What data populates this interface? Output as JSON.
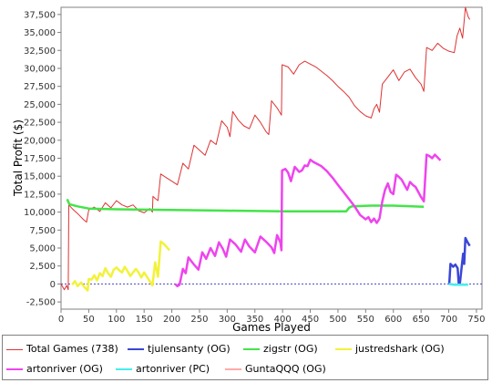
{
  "chart_data": {
    "type": "line",
    "title": "",
    "xlabel": "Games Played",
    "ylabel": "Total Profit ($)",
    "xlim": [
      0,
      760
    ],
    "ylim": [
      -3500,
      38500
    ],
    "x_ticks": [
      "0",
      "50",
      "100",
      "150",
      "200",
      "250",
      "300",
      "350",
      "400",
      "450",
      "500",
      "550",
      "600",
      "650",
      "700",
      "750"
    ],
    "x_tick_values": [
      0,
      50,
      100,
      150,
      200,
      250,
      300,
      350,
      400,
      450,
      500,
      550,
      600,
      650,
      700,
      750
    ],
    "y_ticks": [
      "-2,500",
      "0",
      "2,500",
      "5,000",
      "7,500",
      "10,000",
      "12,500",
      "15,000",
      "17,500",
      "20,000",
      "22,500",
      "25,000",
      "27,500",
      "30,000",
      "32,500",
      "35,000",
      "37,500"
    ],
    "y_tick_values": [
      -2500,
      0,
      2500,
      5000,
      7500,
      10000,
      12500,
      15000,
      17500,
      20000,
      22500,
      25000,
      27500,
      30000,
      32500,
      35000,
      37500
    ],
    "zero_line": true,
    "legend_position": "bottom",
    "series": [
      {
        "name": "Total Games (738)",
        "color": "#dd3333",
        "width": 1,
        "points": [
          [
            0,
            0
          ],
          [
            6,
            -800
          ],
          [
            10,
            -200
          ],
          [
            13,
            -800
          ],
          [
            14,
            11000
          ],
          [
            20,
            10500
          ],
          [
            30,
            9800
          ],
          [
            40,
            9000
          ],
          [
            46,
            8600
          ],
          [
            50,
            10300
          ],
          [
            60,
            10700
          ],
          [
            70,
            10100
          ],
          [
            80,
            11300
          ],
          [
            90,
            10600
          ],
          [
            100,
            11600
          ],
          [
            110,
            11000
          ],
          [
            120,
            10700
          ],
          [
            130,
            11000
          ],
          [
            140,
            10200
          ],
          [
            150,
            9900
          ],
          [
            160,
            10500
          ],
          [
            165,
            10000
          ],
          [
            166,
            12200
          ],
          [
            170,
            11900
          ],
          [
            175,
            11600
          ],
          [
            180,
            15300
          ],
          [
            190,
            14800
          ],
          [
            200,
            14300
          ],
          [
            210,
            13800
          ],
          [
            220,
            16800
          ],
          [
            230,
            16000
          ],
          [
            240,
            19300
          ],
          [
            250,
            18600
          ],
          [
            260,
            17900
          ],
          [
            270,
            20000
          ],
          [
            280,
            19400
          ],
          [
            290,
            22700
          ],
          [
            300,
            21800
          ],
          [
            305,
            20500
          ],
          [
            310,
            24000
          ],
          [
            320,
            22800
          ],
          [
            330,
            22000
          ],
          [
            340,
            21600
          ],
          [
            350,
            23500
          ],
          [
            360,
            22500
          ],
          [
            370,
            21200
          ],
          [
            375,
            20800
          ],
          [
            380,
            25500
          ],
          [
            390,
            24500
          ],
          [
            398,
            23500
          ],
          [
            399,
            30500
          ],
          [
            410,
            30200
          ],
          [
            420,
            29200
          ],
          [
            430,
            30500
          ],
          [
            440,
            31000
          ],
          [
            450,
            30600
          ],
          [
            460,
            30200
          ],
          [
            470,
            29600
          ],
          [
            480,
            29000
          ],
          [
            490,
            28300
          ],
          [
            500,
            27500
          ],
          [
            510,
            26800
          ],
          [
            520,
            26000
          ],
          [
            530,
            24800
          ],
          [
            540,
            24000
          ],
          [
            550,
            23400
          ],
          [
            560,
            23100
          ],
          [
            565,
            24400
          ],
          [
            570,
            25000
          ],
          [
            575,
            23900
          ],
          [
            580,
            27800
          ],
          [
            590,
            28800
          ],
          [
            600,
            29800
          ],
          [
            610,
            28300
          ],
          [
            620,
            29500
          ],
          [
            630,
            29900
          ],
          [
            640,
            28700
          ],
          [
            650,
            27800
          ],
          [
            655,
            26800
          ],
          [
            660,
            32900
          ],
          [
            670,
            32500
          ],
          [
            680,
            33500
          ],
          [
            690,
            32800
          ],
          [
            700,
            32400
          ],
          [
            710,
            32200
          ],
          [
            715,
            34500
          ],
          [
            720,
            35600
          ],
          [
            725,
            34200
          ],
          [
            730,
            38500
          ],
          [
            735,
            37200
          ],
          [
            738,
            36800
          ]
        ]
      },
      {
        "name": "tjulensanty (OG)",
        "color": "#3a46d6",
        "width": 2.5,
        "points": [
          [
            701,
            0
          ],
          [
            703,
            2800
          ],
          [
            708,
            2400
          ],
          [
            712,
            2700
          ],
          [
            716,
            2200
          ],
          [
            718,
            0
          ],
          [
            720,
            0
          ],
          [
            726,
            4200
          ],
          [
            728,
            2800
          ],
          [
            730,
            6400
          ],
          [
            734,
            5800
          ],
          [
            738,
            5300
          ]
        ]
      },
      {
        "name": "zigstr (OG)",
        "color": "#44e44a",
        "width": 2.5,
        "points": [
          [
            11,
            11800
          ],
          [
            15,
            11100
          ],
          [
            30,
            10800
          ],
          [
            50,
            10500
          ],
          [
            100,
            10400
          ],
          [
            200,
            10300
          ],
          [
            300,
            10200
          ],
          [
            400,
            10100
          ],
          [
            500,
            10100
          ],
          [
            515,
            10100
          ],
          [
            520,
            10600
          ],
          [
            525,
            10800
          ],
          [
            560,
            10900
          ],
          [
            600,
            10900
          ],
          [
            655,
            10750
          ]
        ]
      },
      {
        "name": "justredshark (OG)",
        "color": "#f2f23a",
        "width": 2.5,
        "points": [
          [
            20,
            -100
          ],
          [
            25,
            400
          ],
          [
            30,
            -300
          ],
          [
            36,
            200
          ],
          [
            42,
            -400
          ],
          [
            48,
            -900
          ],
          [
            50,
            700
          ],
          [
            55,
            600
          ],
          [
            60,
            1200
          ],
          [
            65,
            500
          ],
          [
            70,
            1500
          ],
          [
            75,
            1100
          ],
          [
            80,
            2200
          ],
          [
            85,
            1500
          ],
          [
            90,
            1000
          ],
          [
            95,
            2000
          ],
          [
            100,
            2300
          ],
          [
            105,
            1900
          ],
          [
            110,
            1600
          ],
          [
            115,
            2400
          ],
          [
            120,
            1800
          ],
          [
            125,
            1100
          ],
          [
            130,
            1600
          ],
          [
            135,
            2100
          ],
          [
            140,
            1600
          ],
          [
            145,
            900
          ],
          [
            150,
            1600
          ],
          [
            155,
            1000
          ],
          [
            160,
            400
          ],
          [
            165,
            -200
          ],
          [
            170,
            3000
          ],
          [
            175,
            1000
          ],
          [
            180,
            5900
          ],
          [
            185,
            5600
          ],
          [
            190,
            5200
          ],
          [
            196,
            4700
          ]
        ]
      },
      {
        "name": "artonriver (OG)",
        "color": "#ee44ee",
        "width": 2.5,
        "points": [
          [
            206,
            0
          ],
          [
            210,
            -300
          ],
          [
            214,
            -100
          ],
          [
            220,
            2100
          ],
          [
            225,
            1500
          ],
          [
            230,
            3700
          ],
          [
            240,
            2700
          ],
          [
            248,
            2000
          ],
          [
            255,
            4400
          ],
          [
            262,
            3500
          ],
          [
            270,
            5000
          ],
          [
            278,
            3900
          ],
          [
            285,
            5800
          ],
          [
            292,
            4900
          ],
          [
            298,
            3800
          ],
          [
            305,
            6200
          ],
          [
            315,
            5500
          ],
          [
            325,
            4500
          ],
          [
            332,
            6200
          ],
          [
            340,
            5200
          ],
          [
            350,
            4400
          ],
          [
            360,
            6600
          ],
          [
            370,
            5900
          ],
          [
            380,
            5100
          ],
          [
            385,
            4300
          ],
          [
            390,
            6800
          ],
          [
            396,
            5800
          ],
          [
            398,
            4700
          ],
          [
            399,
            15800
          ],
          [
            405,
            16000
          ],
          [
            410,
            15500
          ],
          [
            415,
            14300
          ],
          [
            422,
            16300
          ],
          [
            430,
            15600
          ],
          [
            435,
            15800
          ],
          [
            440,
            16500
          ],
          [
            445,
            16400
          ],
          [
            450,
            17300
          ],
          [
            455,
            17000
          ],
          [
            460,
            16800
          ],
          [
            470,
            16400
          ],
          [
            480,
            15700
          ],
          [
            490,
            14800
          ],
          [
            500,
            13800
          ],
          [
            510,
            12800
          ],
          [
            520,
            11800
          ],
          [
            530,
            10800
          ],
          [
            540,
            9600
          ],
          [
            550,
            9000
          ],
          [
            555,
            9300
          ],
          [
            560,
            8600
          ],
          [
            565,
            9100
          ],
          [
            570,
            8500
          ],
          [
            575,
            9100
          ],
          [
            580,
            11500
          ],
          [
            585,
            13100
          ],
          [
            590,
            14000
          ],
          [
            595,
            12800
          ],
          [
            600,
            12500
          ],
          [
            605,
            15200
          ],
          [
            610,
            14900
          ],
          [
            615,
            14500
          ],
          [
            620,
            13800
          ],
          [
            625,
            13100
          ],
          [
            630,
            14200
          ],
          [
            635,
            13800
          ],
          [
            640,
            13500
          ],
          [
            645,
            12800
          ],
          [
            650,
            12100
          ],
          [
            655,
            11500
          ],
          [
            660,
            18000
          ],
          [
            665,
            17800
          ],
          [
            670,
            17500
          ],
          [
            675,
            18000
          ],
          [
            680,
            17600
          ],
          [
            685,
            17200
          ]
        ]
      },
      {
        "name": "artonriver (PC)",
        "color": "#44eeee",
        "width": 2.5,
        "points": [
          [
            700,
            0
          ],
          [
            710,
            -100
          ],
          [
            720,
            -100
          ],
          [
            735,
            -100
          ]
        ]
      },
      {
        "name": "GuntaQQQ (OG)",
        "color": "#ffaaaa",
        "width": 2.5,
        "points": []
      }
    ]
  }
}
